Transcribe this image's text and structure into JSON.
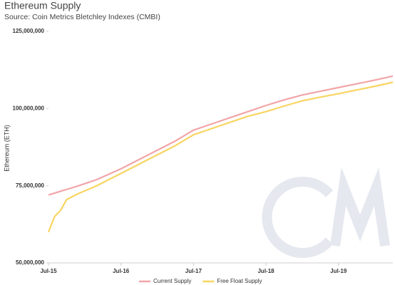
{
  "chart_data": {
    "type": "line",
    "title": "Ethereum Supply",
    "subtitle": "Source: Coin Metrics Bletchley Indexes (CMBI)",
    "y_label": "Ethereum (ETH)",
    "x": [
      "2015-07",
      "2015-08",
      "2015-09",
      "2015-10",
      "2015-12",
      "2016-03",
      "2016-07",
      "2016-10",
      "2017-01",
      "2017-04",
      "2017-07",
      "2017-10",
      "2018-01",
      "2018-04",
      "2018-07",
      "2018-10",
      "2019-01",
      "2019-04",
      "2019-07",
      "2019-10",
      "2020-01",
      "2020-04"
    ],
    "series": [
      {
        "name": "Current Supply",
        "color": "#f2a5a8",
        "values": [
          72000000,
          72600000,
          73200000,
          73800000,
          75000000,
          77000000,
          80500000,
          83500000,
          86500000,
          89500000,
          93000000,
          95000000,
          97000000,
          99000000,
          101000000,
          102800000,
          104400000,
          105600000,
          106800000,
          108000000,
          109200000,
          110500000
        ]
      },
      {
        "name": "Free Float Supply",
        "color": "#f8d562",
        "values": [
          60000000,
          65000000,
          67000000,
          70500000,
          72500000,
          75000000,
          79000000,
          82000000,
          85000000,
          88000000,
          91500000,
          93500000,
          95500000,
          97500000,
          99000000,
          100800000,
          102500000,
          103700000,
          104800000,
          106000000,
          107200000,
          108500000
        ]
      }
    ],
    "xlim": [
      "2015-07",
      "2020-04"
    ],
    "xticks": [
      {
        "value": "2015-07",
        "label": "Jul-15"
      },
      {
        "value": "2016-07",
        "label": "Jul-16"
      },
      {
        "value": "2017-07",
        "label": "Jul-17"
      },
      {
        "value": "2018-07",
        "label": "Jul-18"
      },
      {
        "value": "2019-07",
        "label": "Jul-19"
      }
    ],
    "ylim": [
      50000000,
      125000000
    ],
    "yticks": [
      {
        "value": 50000000,
        "label": "50,000,000"
      },
      {
        "value": 75000000,
        "label": "75,000,000"
      },
      {
        "value": 100000000,
        "label": "100,000,000"
      },
      {
        "value": 125000000,
        "label": "125,000,000"
      }
    ],
    "legend": "bottom"
  }
}
